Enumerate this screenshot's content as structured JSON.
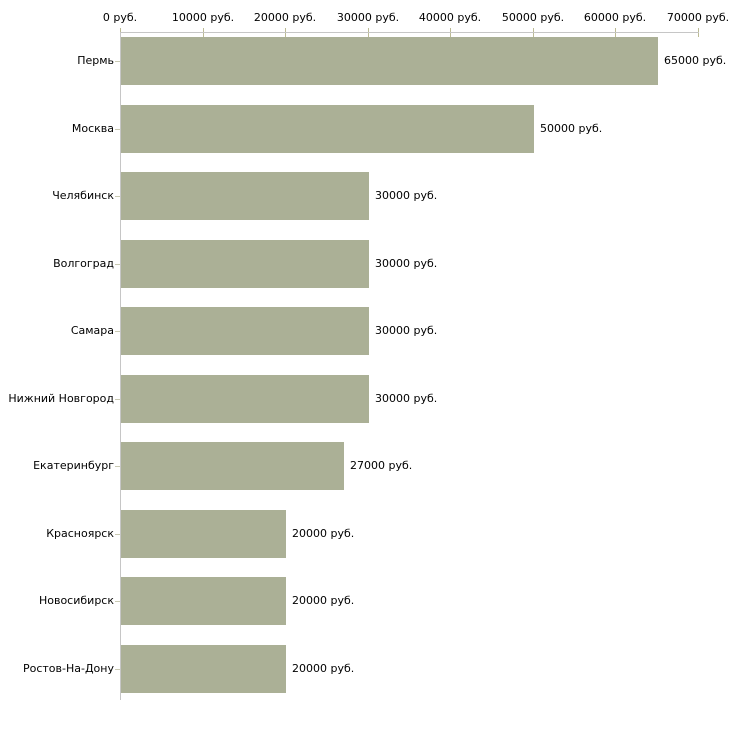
{
  "chart_data": {
    "type": "bar",
    "orientation": "horizontal",
    "title": "",
    "xlabel": "",
    "ylabel": "",
    "unit": "руб.",
    "categories": [
      "Пермь",
      "Москва",
      "Челябинск",
      "Волгоград",
      "Самара",
      "Нижний Новгород",
      "Екатеринбург",
      "Красноярск",
      "Новосибирск",
      "Ростов-На-Дону"
    ],
    "values": [
      65000,
      50000,
      30000,
      30000,
      30000,
      30000,
      27000,
      20000,
      20000,
      20000
    ],
    "value_labels": [
      "65000 руб.",
      "50000 руб.",
      "30000 руб.",
      "30000 руб.",
      "30000 руб.",
      "30000 руб.",
      "27000 руб.",
      "20000 руб.",
      "20000 руб.",
      "20000 руб."
    ],
    "xlim": [
      0,
      70000
    ],
    "x_ticks": [
      0,
      10000,
      20000,
      30000,
      40000,
      50000,
      60000,
      70000
    ],
    "x_tick_labels": [
      "0 руб.",
      "10000 руб.",
      "20000 руб.",
      "30000 руб.",
      "40000 руб.",
      "50000 руб.",
      "60000 руб.",
      "70000 руб."
    ],
    "x_axis_position": "top",
    "grid": false,
    "legend": false,
    "colors": {
      "bar": "#abb096",
      "axis_line": "#c6c6c6",
      "x_tick_mark": "#bcbb94",
      "y_tick_mark": "#c9c9b2",
      "text": "#000000",
      "background": "#ffffff"
    }
  }
}
